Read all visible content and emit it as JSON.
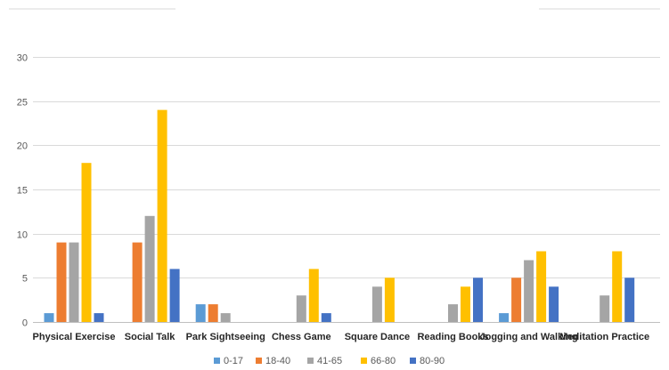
{
  "chart_data": {
    "type": "bar",
    "title": "",
    "xlabel": "",
    "ylabel": "",
    "ylim": [
      0,
      30
    ],
    "yticks": [
      0,
      5,
      10,
      15,
      20,
      25,
      30
    ],
    "grid": true,
    "legend_position": "bottom",
    "categories": [
      "Physical Exercise",
      "Social Talk",
      "Park Sightseeing",
      "Chess Game",
      "Square Dance",
      "Reading Books",
      "Jogging and Walking",
      "Meditation Practice"
    ],
    "series": [
      {
        "name": "0-17",
        "color": "#5B9BD5",
        "values": [
          1,
          0,
          2,
          0,
          0,
          0,
          1,
          0
        ]
      },
      {
        "name": "18-40",
        "color": "#ED7D31",
        "values": [
          9,
          9,
          2,
          0,
          0,
          0,
          5,
          0
        ]
      },
      {
        "name": "41-65",
        "color": "#A5A5A5",
        "values": [
          9,
          12,
          1,
          3,
          4,
          2,
          7,
          3
        ]
      },
      {
        "name": "66-80",
        "color": "#FFC000",
        "values": [
          18,
          24,
          0,
          6,
          5,
          4,
          8,
          8
        ]
      },
      {
        "name": "80-90",
        "color": "#4472C4",
        "values": [
          1,
          6,
          0,
          1,
          0,
          5,
          4,
          5
        ]
      }
    ]
  }
}
